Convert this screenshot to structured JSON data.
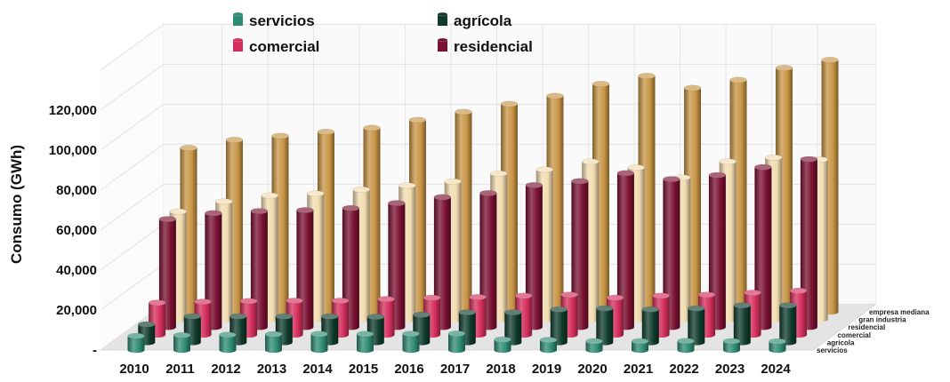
{
  "chart_data": {
    "type": "bar",
    "subtype": "3d-column-depth",
    "ylabel": "Consumo (GWh)",
    "categories": [
      "2010",
      "2011",
      "2012",
      "2013",
      "2014",
      "2015",
      "2016",
      "2017",
      "2018",
      "2019",
      "2020",
      "2021",
      "2022",
      "2023",
      "2024"
    ],
    "ylim": [
      0,
      140000
    ],
    "yticks": [
      {
        "value": 0,
        "label": "-"
      },
      {
        "value": 20000,
        "label": "20,000"
      },
      {
        "value": 40000,
        "label": "40,000"
      },
      {
        "value": 60000,
        "label": "60,000"
      },
      {
        "value": 80000,
        "label": "80,000"
      },
      {
        "value": 100000,
        "label": "100,000"
      },
      {
        "value": 120000,
        "label": "120,000"
      }
    ],
    "grid": true,
    "legend_position": "top",
    "series": [
      {
        "name": "servicios",
        "color": "#2e8b73",
        "values": [
          7000,
          7400,
          7600,
          7900,
          8000,
          8000,
          8100,
          8200,
          5200,
          5000,
          4400,
          4400,
          4500,
          4400,
          4300
        ]
      },
      {
        "name": "agrícola",
        "color": "#0f3b2c",
        "values": [
          9000,
          13000,
          13000,
          13000,
          13000,
          12800,
          13800,
          15000,
          15000,
          16500,
          17000,
          16500,
          17000,
          18500,
          18500
        ]
      },
      {
        "name": "comercial",
        "color": "#d42e5c",
        "values": [
          16000,
          16500,
          16800,
          17000,
          17000,
          17800,
          18500,
          18800,
          19500,
          20000,
          18500,
          19500,
          20000,
          21000,
          22000
        ]
      },
      {
        "name": "residencial",
        "color": "#7a1032",
        "values": [
          54000,
          57000,
          58000,
          58500,
          59500,
          62000,
          65000,
          67000,
          71000,
          73000,
          77000,
          74000,
          76000,
          80000,
          84000
        ]
      },
      {
        "name": "gran industria",
        "color": "#f2dcb0",
        "values": [
          54000,
          59000,
          62000,
          63000,
          65000,
          67000,
          69000,
          73000,
          75000,
          79000,
          76000,
          71000,
          79000,
          81000,
          80000
        ]
      },
      {
        "name": "empresa mediana",
        "color": "#c89545",
        "values": [
          82000,
          86000,
          88000,
          90000,
          92000,
          96000,
          100000,
          104000,
          108000,
          114000,
          118000,
          112000,
          116000,
          122000,
          126000
        ]
      }
    ],
    "legend": [
      {
        "name": "servicios",
        "color": "#2e8b73"
      },
      {
        "name": "agrícola",
        "color": "#0f3b2c"
      },
      {
        "name": "comercial",
        "color": "#d42e5c"
      },
      {
        "name": "residencial",
        "color": "#7a1032"
      }
    ]
  }
}
